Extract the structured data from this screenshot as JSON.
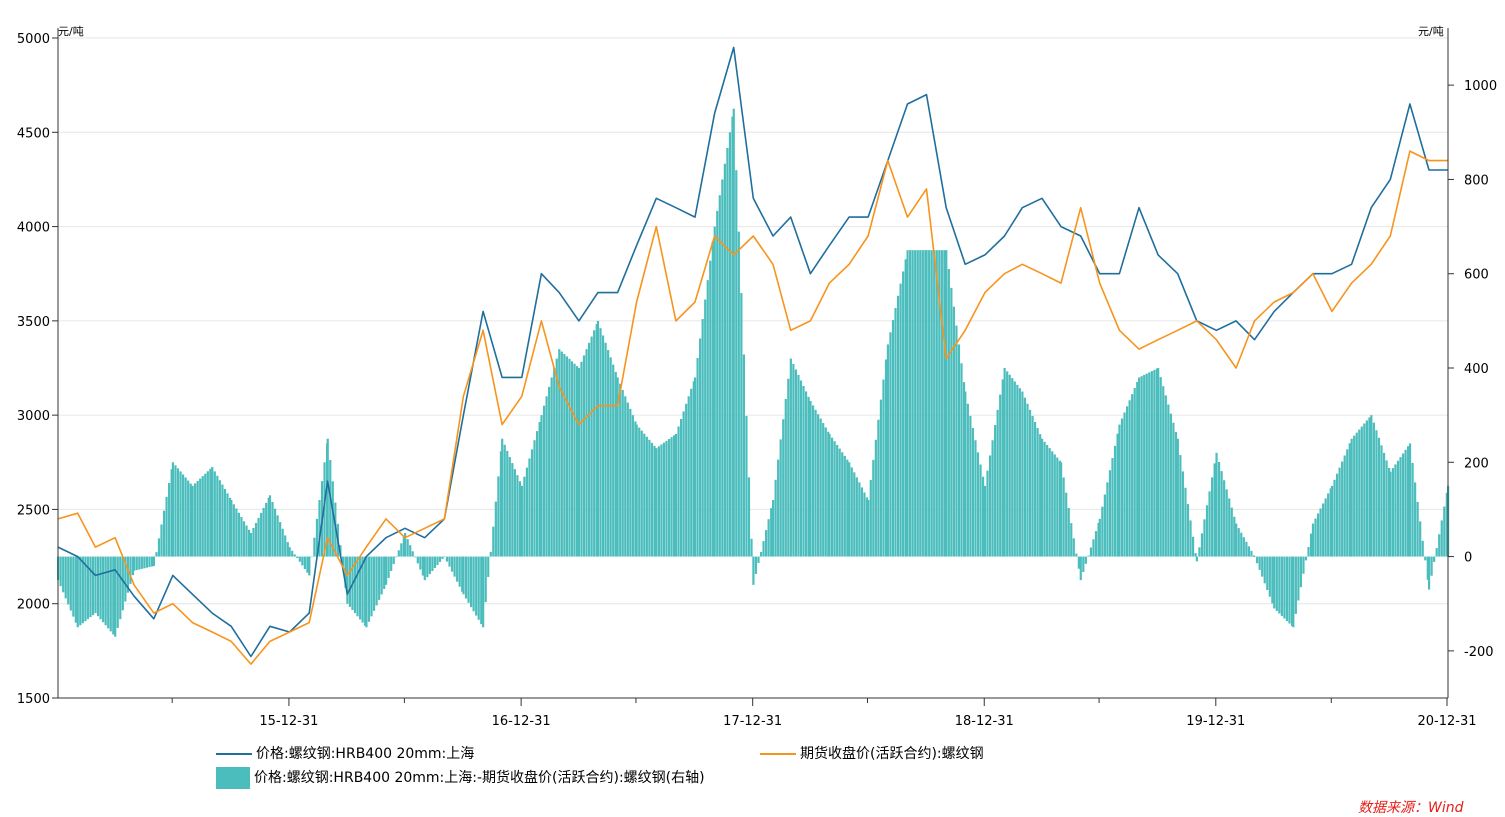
{
  "chart_data": {
    "type": "line",
    "left_unit": "元/吨",
    "right_unit": "元/吨",
    "left_ylim": [
      1500,
      5000
    ],
    "right_ylim": [
      -300,
      1100
    ],
    "left_ticks": [
      1500,
      2000,
      2500,
      3000,
      3500,
      4000,
      4500,
      5000
    ],
    "right_ticks": [
      -200,
      0,
      200,
      400,
      600,
      800,
      1000
    ],
    "x_range": [
      "2015-01-01",
      "2020-12-31"
    ],
    "x_tick_labels": [
      "15-12-31",
      "16-12-31",
      "17-12-31",
      "18-12-31",
      "19-12-31",
      "20-12-31"
    ],
    "x_tick_dates": [
      "2015-12-31",
      "2016-12-31",
      "2017-12-31",
      "2018-12-31",
      "2019-12-31",
      "2020-12-31"
    ],
    "grid": "horizontal",
    "legend_position": "bottom",
    "series": [
      {
        "name": "价格:螺纹钢:HRB400 20mm:上海",
        "axis": "left",
        "style": "line",
        "color": "#1f6f9e",
        "points": [
          [
            "2015-01-01",
            2300
          ],
          [
            "2015-02-01",
            2250
          ],
          [
            "2015-03-01",
            2150
          ],
          [
            "2015-04-01",
            2180
          ],
          [
            "2015-05-01",
            2040
          ],
          [
            "2015-06-01",
            1920
          ],
          [
            "2015-07-01",
            2150
          ],
          [
            "2015-08-01",
            2050
          ],
          [
            "2015-09-01",
            1950
          ],
          [
            "2015-10-01",
            1880
          ],
          [
            "2015-11-01",
            1720
          ],
          [
            "2015-12-01",
            1880
          ],
          [
            "2016-01-01",
            1850
          ],
          [
            "2016-02-01",
            1950
          ],
          [
            "2016-03-01",
            2650
          ],
          [
            "2016-04-01",
            2050
          ],
          [
            "2016-05-01",
            2250
          ],
          [
            "2016-06-01",
            2350
          ],
          [
            "2016-07-01",
            2400
          ],
          [
            "2016-08-01",
            2350
          ],
          [
            "2016-09-01",
            2450
          ],
          [
            "2016-10-01",
            3000
          ],
          [
            "2016-11-01",
            3550
          ],
          [
            "2016-12-01",
            3200
          ],
          [
            "2017-01-01",
            3200
          ],
          [
            "2017-02-01",
            3750
          ],
          [
            "2017-03-01",
            3650
          ],
          [
            "2017-04-01",
            3500
          ],
          [
            "2017-05-01",
            3650
          ],
          [
            "2017-06-01",
            3650
          ],
          [
            "2017-07-01",
            3900
          ],
          [
            "2017-08-01",
            4150
          ],
          [
            "2017-09-01",
            4100
          ],
          [
            "2017-10-01",
            4050
          ],
          [
            "2017-11-01",
            4600
          ],
          [
            "2017-12-01",
            4950
          ],
          [
            "2018-01-01",
            4150
          ],
          [
            "2018-02-01",
            3950
          ],
          [
            "2018-03-01",
            4050
          ],
          [
            "2018-04-01",
            3750
          ],
          [
            "2018-05-01",
            3900
          ],
          [
            "2018-06-01",
            4050
          ],
          [
            "2018-07-01",
            4050
          ],
          [
            "2018-08-01",
            4350
          ],
          [
            "2018-09-01",
            4650
          ],
          [
            "2018-10-01",
            4700
          ],
          [
            "2018-11-01",
            4100
          ],
          [
            "2018-12-01",
            3800
          ],
          [
            "2019-01-01",
            3850
          ],
          [
            "2019-02-01",
            3950
          ],
          [
            "2019-03-01",
            4100
          ],
          [
            "2019-04-01",
            4150
          ],
          [
            "2019-05-01",
            4000
          ],
          [
            "2019-06-01",
            3950
          ],
          [
            "2019-07-01",
            3750
          ],
          [
            "2019-08-01",
            3750
          ],
          [
            "2019-09-01",
            4100
          ],
          [
            "2019-10-01",
            3850
          ],
          [
            "2019-11-01",
            3750
          ],
          [
            "2019-12-01",
            3500
          ],
          [
            "2020-01-01",
            3450
          ],
          [
            "2020-02-01",
            3500
          ],
          [
            "2020-03-01",
            3400
          ],
          [
            "2020-04-01",
            3550
          ],
          [
            "2020-05-01",
            3650
          ],
          [
            "2020-06-01",
            3750
          ],
          [
            "2020-07-01",
            3750
          ],
          [
            "2020-08-01",
            3800
          ],
          [
            "2020-09-01",
            4100
          ],
          [
            "2020-10-01",
            4250
          ],
          [
            "2020-11-01",
            4650
          ],
          [
            "2020-12-01",
            4300
          ],
          [
            "2020-12-31",
            4300
          ]
        ]
      },
      {
        "name": "期货收盘价(活跃合约):螺纹钢",
        "axis": "left",
        "style": "line",
        "color": "#f7941d",
        "points": [
          [
            "2015-01-01",
            2450
          ],
          [
            "2015-02-01",
            2480
          ],
          [
            "2015-03-01",
            2300
          ],
          [
            "2015-04-01",
            2350
          ],
          [
            "2015-05-01",
            2100
          ],
          [
            "2015-06-01",
            1950
          ],
          [
            "2015-07-01",
            2000
          ],
          [
            "2015-08-01",
            1900
          ],
          [
            "2015-09-01",
            1850
          ],
          [
            "2015-10-01",
            1800
          ],
          [
            "2015-11-01",
            1680
          ],
          [
            "2015-12-01",
            1800
          ],
          [
            "2016-01-01",
            1850
          ],
          [
            "2016-02-01",
            1900
          ],
          [
            "2016-03-01",
            2350
          ],
          [
            "2016-04-01",
            2150
          ],
          [
            "2016-05-01",
            2300
          ],
          [
            "2016-06-01",
            2450
          ],
          [
            "2016-07-01",
            2350
          ],
          [
            "2016-08-01",
            2400
          ],
          [
            "2016-09-01",
            2450
          ],
          [
            "2016-10-01",
            3100
          ],
          [
            "2016-11-01",
            3450
          ],
          [
            "2016-12-01",
            2950
          ],
          [
            "2017-01-01",
            3100
          ],
          [
            "2017-02-01",
            3500
          ],
          [
            "2017-03-01",
            3150
          ],
          [
            "2017-04-01",
            2950
          ],
          [
            "2017-05-01",
            3050
          ],
          [
            "2017-06-01",
            3050
          ],
          [
            "2017-07-01",
            3600
          ],
          [
            "2017-08-01",
            4000
          ],
          [
            "2017-09-01",
            3500
          ],
          [
            "2017-10-01",
            3600
          ],
          [
            "2017-11-01",
            3950
          ],
          [
            "2017-12-01",
            3850
          ],
          [
            "2018-01-01",
            3950
          ],
          [
            "2018-02-01",
            3800
          ],
          [
            "2018-03-01",
            3450
          ],
          [
            "2018-04-01",
            3500
          ],
          [
            "2018-05-01",
            3700
          ],
          [
            "2018-06-01",
            3800
          ],
          [
            "2018-07-01",
            3950
          ],
          [
            "2018-08-01",
            4350
          ],
          [
            "2018-09-01",
            4050
          ],
          [
            "2018-10-01",
            4200
          ],
          [
            "2018-11-01",
            3300
          ],
          [
            "2018-12-01",
            3450
          ],
          [
            "2019-01-01",
            3650
          ],
          [
            "2019-02-01",
            3750
          ],
          [
            "2019-03-01",
            3800
          ],
          [
            "2019-04-01",
            3750
          ],
          [
            "2019-05-01",
            3700
          ],
          [
            "2019-06-01",
            4100
          ],
          [
            "2019-07-01",
            3700
          ],
          [
            "2019-08-01",
            3450
          ],
          [
            "2019-09-01",
            3350
          ],
          [
            "2019-10-01",
            3400
          ],
          [
            "2019-11-01",
            3450
          ],
          [
            "2019-12-01",
            3500
          ],
          [
            "2020-01-01",
            3400
          ],
          [
            "2020-02-01",
            3250
          ],
          [
            "2020-03-01",
            3500
          ],
          [
            "2020-04-01",
            3600
          ],
          [
            "2020-05-01",
            3650
          ],
          [
            "2020-06-01",
            3750
          ],
          [
            "2020-07-01",
            3550
          ],
          [
            "2020-08-01",
            3700
          ],
          [
            "2020-09-01",
            3800
          ],
          [
            "2020-10-01",
            3950
          ],
          [
            "2020-11-01",
            4400
          ],
          [
            "2020-12-01",
            4350
          ],
          [
            "2020-12-31",
            4350
          ]
        ]
      },
      {
        "name": "价格:螺纹钢:HRB400 20mm:上海:-期货收盘价(活跃合约):螺纹钢(右轴)",
        "axis": "right",
        "style": "bar",
        "color": "#4cbdbd",
        "points": [
          [
            "2015-01-01",
            -50
          ],
          [
            "2015-02-01",
            -150
          ],
          [
            "2015-03-01",
            -120
          ],
          [
            "2015-04-01",
            -170
          ],
          [
            "2015-05-01",
            -30
          ],
          [
            "2015-06-01",
            -20
          ],
          [
            "2015-07-01",
            200
          ],
          [
            "2015-08-01",
            150
          ],
          [
            "2015-09-01",
            190
          ],
          [
            "2015-10-01",
            120
          ],
          [
            "2015-11-01",
            50
          ],
          [
            "2015-12-01",
            130
          ],
          [
            "2016-01-01",
            20
          ],
          [
            "2016-02-01",
            -40
          ],
          [
            "2016-03-01",
            250
          ],
          [
            "2016-04-01",
            -100
          ],
          [
            "2016-05-01",
            -150
          ],
          [
            "2016-06-01",
            -60
          ],
          [
            "2016-07-01",
            50
          ],
          [
            "2016-08-01",
            -50
          ],
          [
            "2016-09-01",
            0
          ],
          [
            "2016-10-01",
            -80
          ],
          [
            "2016-11-01",
            -150
          ],
          [
            "2016-12-01",
            250
          ],
          [
            "2017-01-01",
            150
          ],
          [
            "2017-02-01",
            300
          ],
          [
            "2017-03-01",
            440
          ],
          [
            "2017-04-01",
            400
          ],
          [
            "2017-05-01",
            500
          ],
          [
            "2017-06-01",
            380
          ],
          [
            "2017-07-01",
            280
          ],
          [
            "2017-08-01",
            230
          ],
          [
            "2017-09-01",
            260
          ],
          [
            "2017-10-01",
            380
          ],
          [
            "2017-11-01",
            700
          ],
          [
            "2017-12-01",
            950
          ],
          [
            "2018-01-01",
            -60
          ],
          [
            "2018-02-01",
            120
          ],
          [
            "2018-03-01",
            420
          ],
          [
            "2018-04-01",
            330
          ],
          [
            "2018-05-01",
            260
          ],
          [
            "2018-06-01",
            200
          ],
          [
            "2018-07-01",
            120
          ],
          [
            "2018-08-01",
            450
          ],
          [
            "2018-09-01",
            650
          ],
          [
            "2018-10-01",
            650
          ],
          [
            "2018-11-01",
            650
          ],
          [
            "2018-12-01",
            350
          ],
          [
            "2019-01-01",
            150
          ],
          [
            "2019-02-01",
            400
          ],
          [
            "2019-03-01",
            350
          ],
          [
            "2019-04-01",
            250
          ],
          [
            "2019-05-01",
            200
          ],
          [
            "2019-06-01",
            -50
          ],
          [
            "2019-07-01",
            80
          ],
          [
            "2019-08-01",
            280
          ],
          [
            "2019-09-01",
            380
          ],
          [
            "2019-10-01",
            400
          ],
          [
            "2019-11-01",
            250
          ],
          [
            "2019-12-01",
            -10
          ],
          [
            "2020-01-01",
            220
          ],
          [
            "2020-02-01",
            70
          ],
          [
            "2020-03-01",
            0
          ],
          [
            "2020-04-01",
            -110
          ],
          [
            "2020-05-01",
            -150
          ],
          [
            "2020-06-01",
            70
          ],
          [
            "2020-07-01",
            150
          ],
          [
            "2020-08-01",
            250
          ],
          [
            "2020-09-01",
            300
          ],
          [
            "2020-10-01",
            180
          ],
          [
            "2020-11-01",
            240
          ],
          [
            "2020-12-01",
            -70
          ],
          [
            "2020-12-31",
            150
          ]
        ]
      }
    ]
  },
  "source": "数据来源：Wind"
}
